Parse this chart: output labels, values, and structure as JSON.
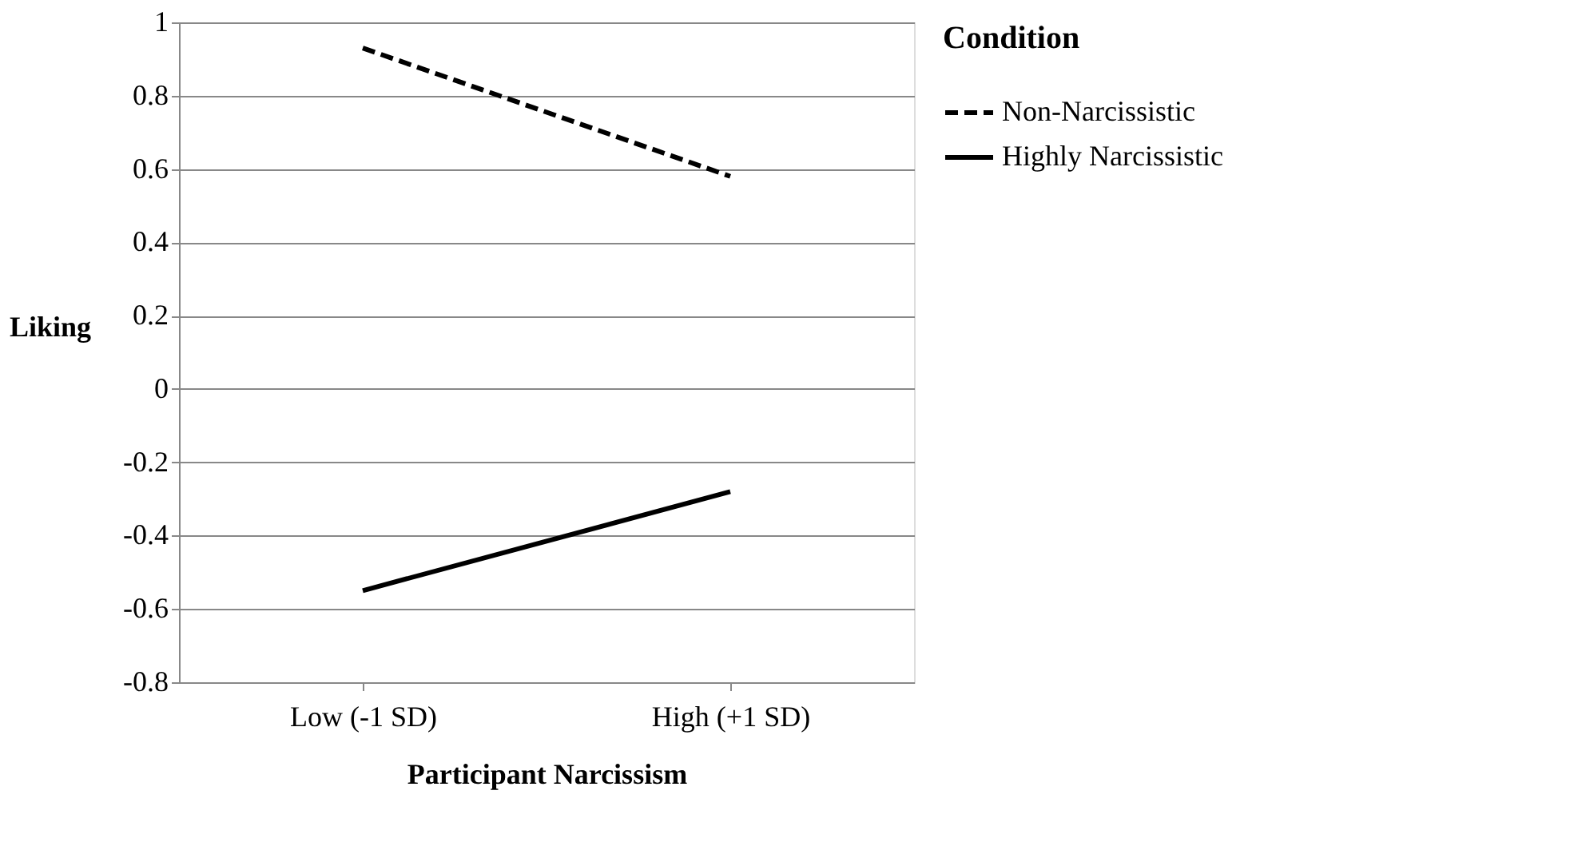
{
  "chart_data": {
    "type": "line",
    "xlabel": "Participant Narcissism",
    "ylabel": "Liking",
    "legend_title": "Condition",
    "categories": [
      "Low (-1 SD)",
      "High (+1 SD)"
    ],
    "series": [
      {
        "name": "Non-Narcissistic",
        "color": "#000000",
        "line_style": "dashed",
        "values": [
          0.93,
          0.58
        ]
      },
      {
        "name": "Highly Narcissistic",
        "color": "#000000",
        "line_style": "solid",
        "values": [
          -0.55,
          -0.28
        ]
      }
    ],
    "ylim": [
      -0.8,
      1
    ],
    "yticks": [
      -0.8,
      -0.6,
      -0.4,
      -0.2,
      0,
      0.2,
      0.4,
      0.6,
      0.8,
      1
    ],
    "grid": "y",
    "legend": "right",
    "marker": "none"
  }
}
